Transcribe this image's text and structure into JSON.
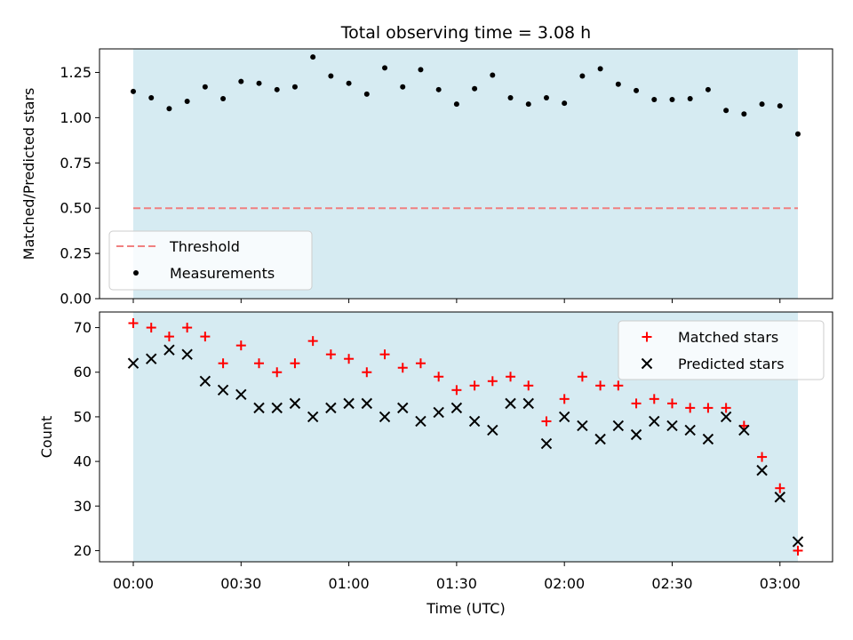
{
  "chart_data": [
    {
      "type": "scatter",
      "title": "Total observing time = 3.08 h",
      "ylabel": "Matched/Predicted stars",
      "ylim": [
        0,
        1.38
      ],
      "yticks": [
        "0.00",
        "0.25",
        "0.50",
        "0.75",
        "1.00",
        "1.25"
      ],
      "x_span_minutes": [
        0,
        185
      ],
      "legend_position": "lower-left",
      "threshold": {
        "name": "Threshold",
        "value": 0.5,
        "color": "#f08080"
      },
      "series": [
        {
          "name": "Measurements",
          "color": "#000000",
          "x_minutes": [
            0,
            5,
            10,
            15,
            20,
            25,
            30,
            35,
            40,
            45,
            50,
            55,
            60,
            65,
            70,
            75,
            80,
            85,
            90,
            95,
            100,
            105,
            110,
            115,
            120,
            125,
            130,
            135,
            140,
            145,
            150,
            155,
            160,
            165,
            170,
            175,
            180,
            185
          ],
          "values": [
            1.145,
            1.11,
            1.05,
            1.09,
            1.17,
            1.105,
            1.2,
            1.19,
            1.155,
            1.17,
            1.335,
            1.23,
            1.19,
            1.13,
            1.275,
            1.17,
            1.265,
            1.155,
            1.075,
            1.16,
            1.235,
            1.11,
            1.075,
            1.11,
            1.08,
            1.23,
            1.27,
            1.185,
            1.15,
            1.1,
            1.1,
            1.105,
            1.155,
            1.04,
            1.02,
            1.075,
            1.065,
            0.91
          ]
        }
      ]
    },
    {
      "type": "scatter",
      "xlabel": "Time (UTC)",
      "ylabel": "Count",
      "ylim": [
        17.5,
        73.5
      ],
      "yticks": [
        "20",
        "30",
        "40",
        "50",
        "60",
        "70"
      ],
      "xticks": [
        "00:00",
        "00:30",
        "01:00",
        "01:30",
        "02:00",
        "02:30",
        "03:00"
      ],
      "xtick_minutes": [
        0,
        30,
        60,
        90,
        120,
        150,
        180
      ],
      "x_span_minutes": [
        0,
        185
      ],
      "legend_position": "upper-right",
      "series": [
        {
          "name": "Matched stars",
          "marker": "plus",
          "color": "#ff0000",
          "x_minutes": [
            0,
            5,
            10,
            15,
            20,
            25,
            30,
            35,
            40,
            45,
            50,
            55,
            60,
            65,
            70,
            75,
            80,
            85,
            90,
            95,
            100,
            105,
            110,
            115,
            120,
            125,
            130,
            135,
            140,
            145,
            150,
            155,
            160,
            165,
            170,
            175,
            180,
            185
          ],
          "values": [
            71,
            70,
            68,
            70,
            68,
            62,
            66,
            62,
            60,
            62,
            67,
            64,
            63,
            60,
            64,
            61,
            62,
            59,
            56,
            57,
            58,
            59,
            57,
            49,
            54,
            59,
            57,
            57,
            53,
            54,
            53,
            52,
            52,
            52,
            48,
            41,
            34,
            20
          ]
        },
        {
          "name": "Predicted stars",
          "marker": "x",
          "color": "#000000",
          "x_minutes": [
            0,
            5,
            10,
            15,
            20,
            25,
            30,
            35,
            40,
            45,
            50,
            55,
            60,
            65,
            70,
            75,
            80,
            85,
            90,
            95,
            100,
            105,
            110,
            115,
            120,
            125,
            130,
            135,
            140,
            145,
            150,
            155,
            160,
            165,
            170,
            175,
            180,
            185
          ],
          "values": [
            62,
            63,
            65,
            64,
            58,
            56,
            55,
            52,
            52,
            53,
            50,
            52,
            53,
            53,
            50,
            52,
            49,
            51,
            52,
            49,
            47,
            53,
            53,
            44,
            50,
            48,
            45,
            48,
            46,
            49,
            48,
            47,
            45,
            50,
            47,
            38,
            32,
            22
          ]
        }
      ]
    }
  ],
  "colors": {
    "observing_band": "#add8e6",
    "threshold": "#f08080"
  }
}
